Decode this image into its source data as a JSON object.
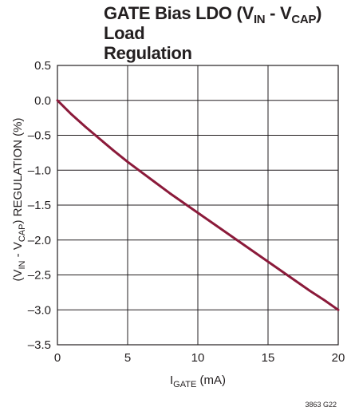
{
  "chart_data": {
    "type": "line",
    "title": {
      "line1": {
        "pre": "GATE Bias LDO (V",
        "sub1": "IN",
        "mid": " - V",
        "sub2": "CAP",
        "post": ") Load"
      },
      "line2": "Regulation"
    },
    "xlabel": {
      "main": "I",
      "sub": "GATE",
      "post": " (mA)"
    },
    "ylabel": {
      "pre": "(V",
      "sub1": "IN",
      "mid": " - V",
      "sub2": "CAP",
      "post": ") REGULATION (%)"
    },
    "xlim": [
      0,
      20
    ],
    "ylim": [
      -3.5,
      0.5
    ],
    "x_ticks": [
      0,
      5,
      10,
      15,
      20
    ],
    "x_tick_labels": [
      "0",
      "5",
      "10",
      "15",
      "20"
    ],
    "y_ticks": [
      0.5,
      0,
      -0.5,
      -1,
      -1.5,
      -2,
      -2.5,
      -3,
      -3.5
    ],
    "y_tick_labels": [
      "0.5",
      "0.0",
      "–0.5",
      "–1.0",
      "–1.5",
      "–2.0",
      "–2.5",
      "–3.0",
      "–3.5"
    ],
    "grid": true,
    "series": [
      {
        "color": "#8b1a3a",
        "x": [
          0,
          1,
          2,
          3,
          4,
          5,
          6,
          7,
          8,
          9,
          10,
          11,
          12,
          13,
          14,
          15,
          16,
          17,
          18,
          19,
          20
        ],
        "y": [
          0,
          -0.2,
          -0.38,
          -0.55,
          -0.72,
          -0.88,
          -1.03,
          -1.18,
          -1.33,
          -1.47,
          -1.61,
          -1.75,
          -1.89,
          -2.03,
          -2.17,
          -2.31,
          -2.45,
          -2.59,
          -2.73,
          -2.86,
          -3.0
        ]
      }
    ],
    "figure_id": "3863 G22"
  }
}
